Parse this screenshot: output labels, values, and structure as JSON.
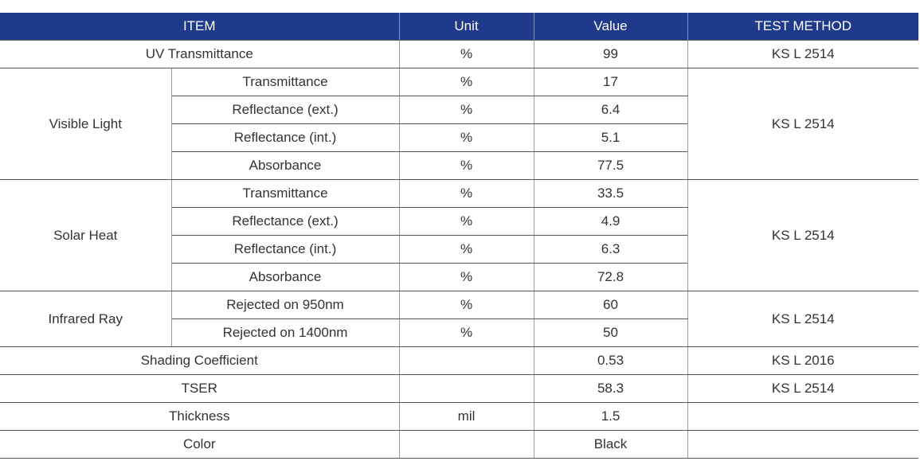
{
  "header": {
    "item": "ITEM",
    "unit": "Unit",
    "value": "Value",
    "test_method": "TEST METHOD"
  },
  "rows": {
    "uv": {
      "item": "UV Transmittance",
      "unit": "%",
      "value": "99",
      "method": "KS L 2514"
    },
    "visible": {
      "group": "Visible Light",
      "method": "KS L 2514",
      "items": [
        {
          "label": "Transmittance",
          "unit": "%",
          "value": "17"
        },
        {
          "label": "Reflectance (ext.)",
          "unit": "%",
          "value": "6.4"
        },
        {
          "label": "Reflectance (int.)",
          "unit": "%",
          "value": "5.1"
        },
        {
          "label": "Absorbance",
          "unit": "%",
          "value": "77.5"
        }
      ]
    },
    "solar": {
      "group": "Solar Heat",
      "method": "KS L 2514",
      "items": [
        {
          "label": "Transmittance",
          "unit": "%",
          "value": "33.5"
        },
        {
          "label": "Reflectance (ext.)",
          "unit": "%",
          "value": "4.9"
        },
        {
          "label": "Reflectance (int.)",
          "unit": "%",
          "value": "6.3"
        },
        {
          "label": "Absorbance",
          "unit": "%",
          "value": "72.8"
        }
      ]
    },
    "infrared": {
      "group": "Infrared Ray",
      "method": "KS L 2514",
      "items": [
        {
          "label": "Rejected on 950nm",
          "unit": "%",
          "value": "60"
        },
        {
          "label": "Rejected on 1400nm",
          "unit": "%",
          "value": "50"
        }
      ]
    },
    "shading": {
      "item": "Shading Coefficient",
      "unit": "",
      "value": "0.53",
      "method": "KS L 2016"
    },
    "tser": {
      "item": "TSER",
      "unit": "",
      "value": "58.3",
      "method": "KS L 2514"
    },
    "thickness": {
      "item": "Thickness",
      "unit": "mil",
      "value": "1.5",
      "method": ""
    },
    "color": {
      "item": "Color",
      "unit": "",
      "value": "Black",
      "method": ""
    }
  },
  "colors": {
    "header_bg": "#1f3a8a",
    "header_text": "#ffffff",
    "body_text": "#333333"
  }
}
